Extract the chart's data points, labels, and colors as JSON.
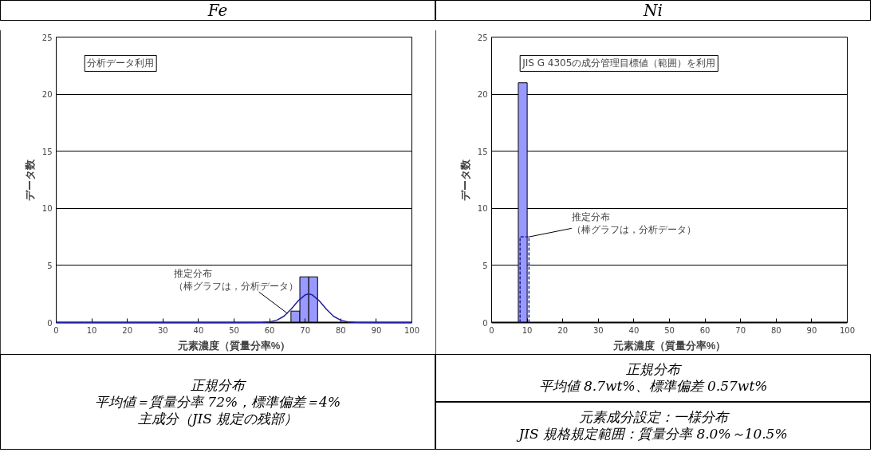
{
  "chart_data": [
    {
      "type": "histogram",
      "title": "Fe",
      "xlabel": "元素濃度（質量分率%）",
      "ylabel": "データ数",
      "xlim": [
        0,
        100
      ],
      "xticks": [
        0,
        10,
        20,
        30,
        40,
        50,
        60,
        70,
        80,
        90,
        100
      ],
      "ylim": [
        0,
        25
      ],
      "yticks": [
        0,
        5,
        10,
        15,
        20,
        25
      ],
      "grid": "y",
      "series": [
        {
          "bins": [
            66,
            68.5,
            71,
            73.5
          ],
          "values": [
            1,
            4,
            4
          ],
          "color": "#9999ff"
        },
        {
          "type": "line",
          "x": [
            0,
            50,
            58,
            60,
            62,
            64,
            66,
            68,
            70,
            71,
            72,
            74,
            76,
            78,
            80,
            82,
            84,
            90,
            100
          ],
          "values": [
            0,
            0,
            0.01,
            0.06,
            0.2,
            0.54,
            1.15,
            1.89,
            2.42,
            2.5,
            2.42,
            1.89,
            1.15,
            0.54,
            0.2,
            0.06,
            0.01,
            0,
            0
          ],
          "color": "#1f1fa0",
          "line_style": "solid"
        }
      ],
      "annotations": [
        "分析データ利用",
        "推定分布",
        {
          "text": "（棒グラフは，分析データ）",
          "x": 65,
          "y": 0.8
        },
        "正規分布",
        "平均値＝質量分率 72%，標準偏差＝4%",
        "主成分（JIS 規定の残部）"
      ]
    },
    {
      "type": "histogram",
      "title": "Ni",
      "xlabel": "元素濃度（質量分率%）",
      "ylabel": "データ数",
      "xlim": [
        0,
        100
      ],
      "xticks": [
        0,
        10,
        20,
        30,
        40,
        50,
        60,
        70,
        80,
        90,
        100
      ],
      "ylim": [
        0,
        25
      ],
      "yticks": [
        0,
        5,
        10,
        15,
        20,
        25
      ],
      "grid": "y",
      "series": [
        {
          "bins": [
            7.5,
            10
          ],
          "values": [
            21
          ],
          "color": "#9999ff"
        },
        {
          "type": "line",
          "x": [
            8,
            8,
            10.5,
            10.5
          ],
          "values": [
            0,
            7.5,
            7.5,
            0
          ],
          "color": "#1f1fa0",
          "line_style": "dashed"
        }
      ],
      "annotations": [
        "JIS G 4305の成分管理目標値（範囲）を利用",
        "推定分布",
        {
          "text": "（棒グラフは，分析データ）",
          "x": 10.5,
          "y": 7.5
        },
        "正規分布",
        "平均値 8.7wt%、標準偏差 0.57wt%",
        "元素成分設定：一様分布",
        "JIS 規格規定範囲：質量分率 8.0%～10.5%"
      ]
    }
  ]
}
